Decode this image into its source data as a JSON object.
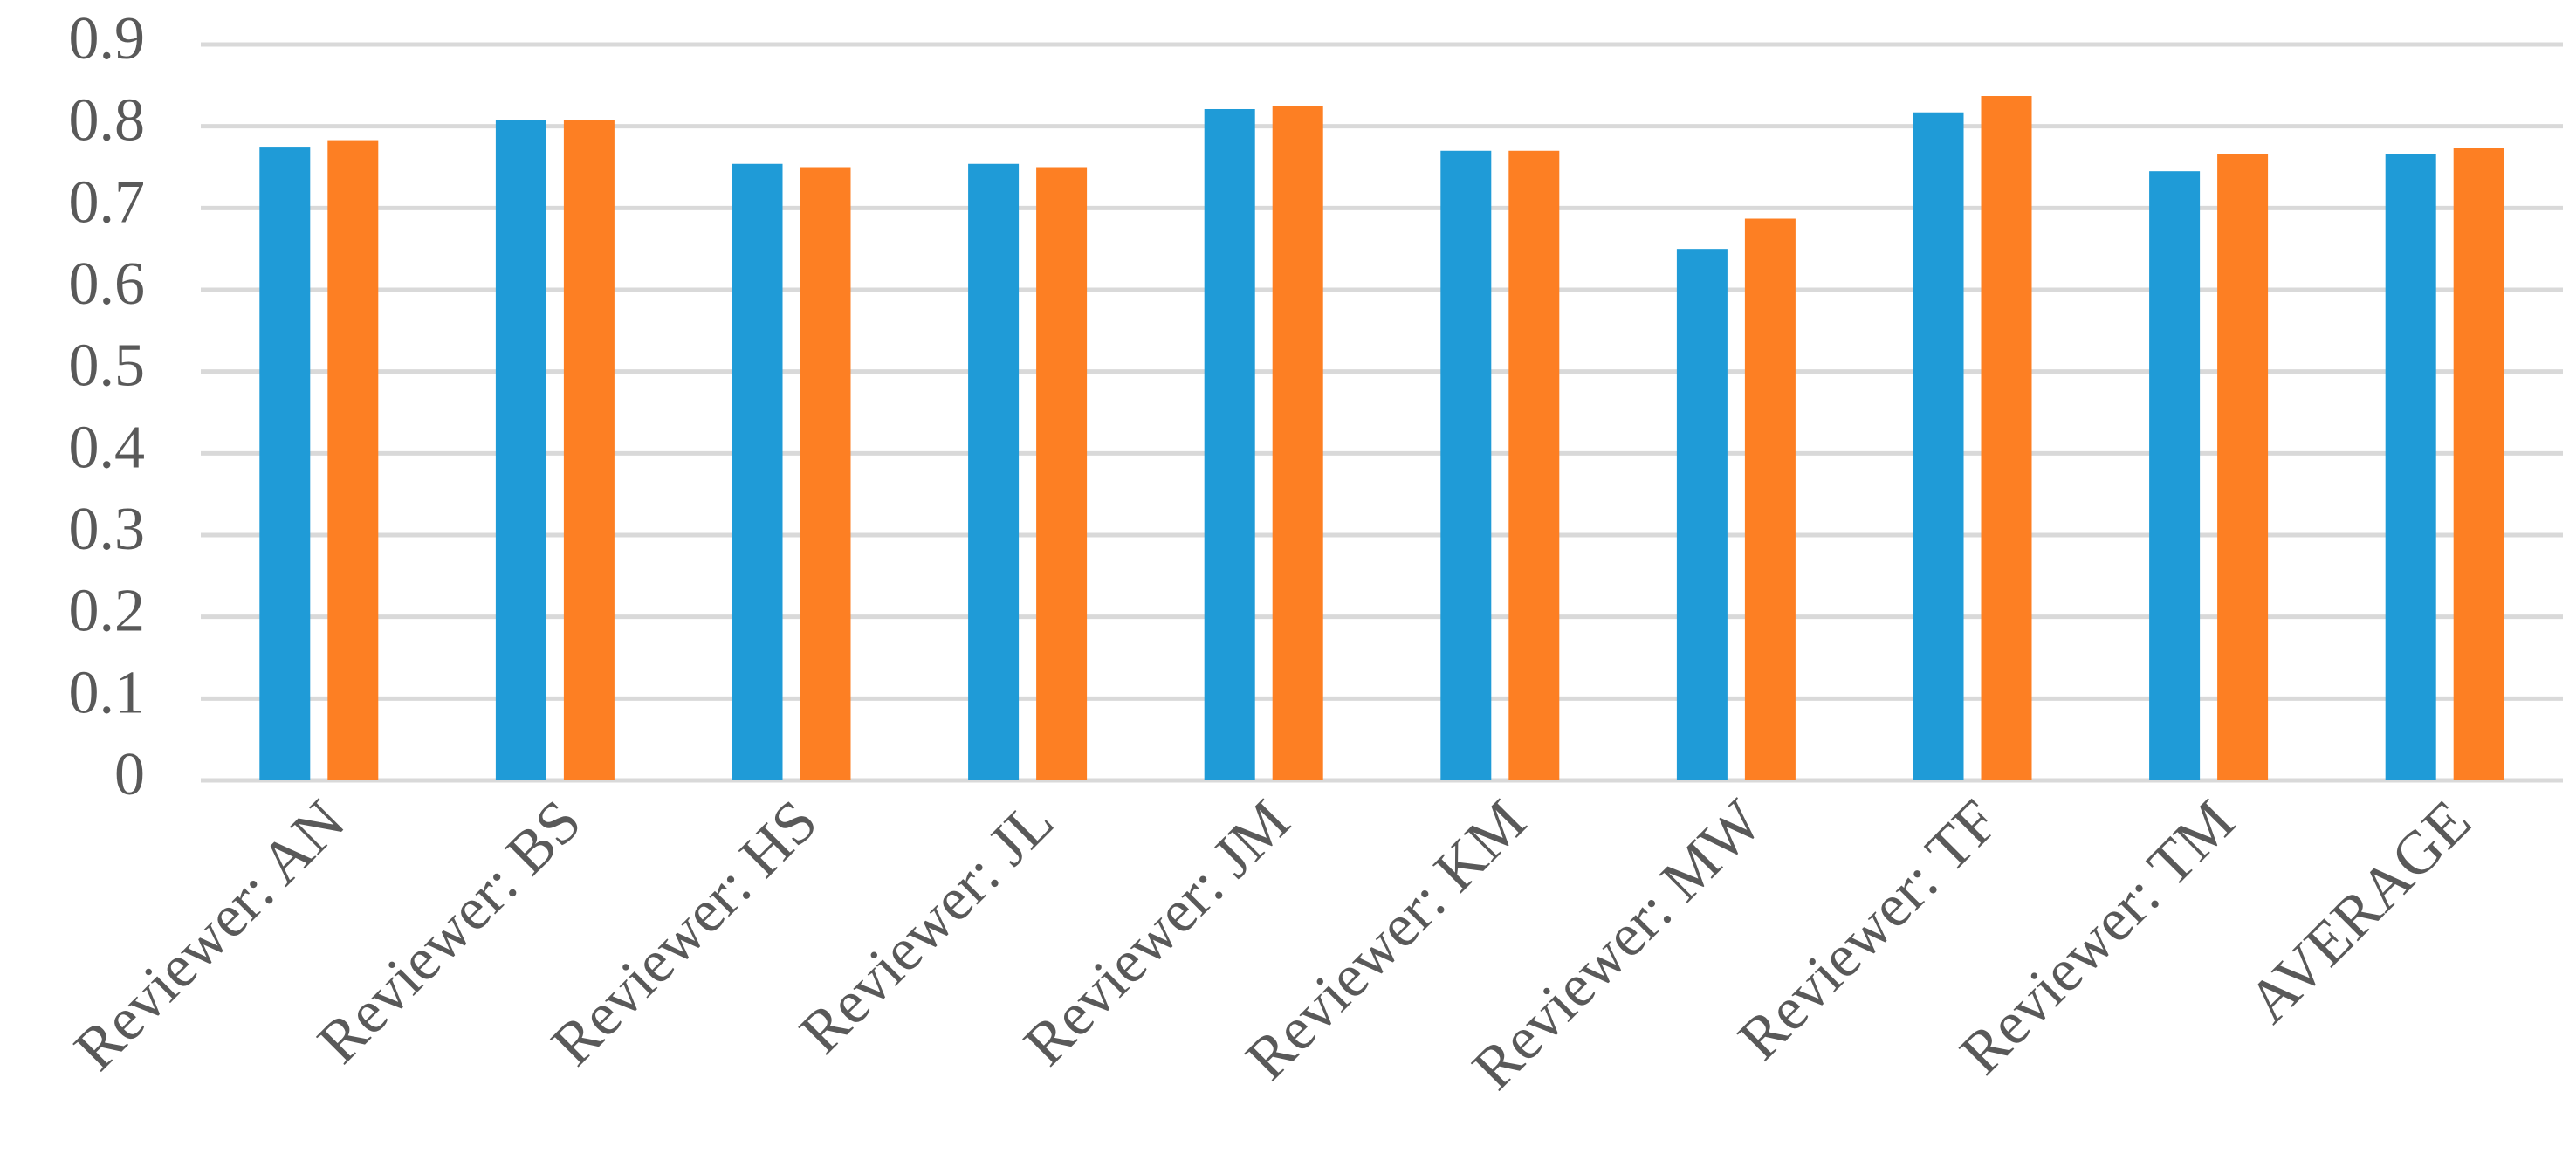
{
  "chart_data": {
    "type": "bar",
    "categories": [
      "Reviewer: AN",
      "Reviewer: BS",
      "Reviewer: HS",
      "Reviewer: JL",
      "Reviewer: JM",
      "Reviewer: KM",
      "Reviewer: MW",
      "Reviewer: TF",
      "Reviewer: TM",
      "AVERAGE"
    ],
    "series": [
      {
        "color": "#1f9bd7",
        "values": [
          0.775,
          0.808,
          0.754,
          0.754,
          0.821,
          0.77,
          0.65,
          0.817,
          0.745,
          0.766
        ]
      },
      {
        "color": "#fd7f23",
        "values": [
          0.783,
          0.808,
          0.75,
          0.75,
          0.825,
          0.77,
          0.687,
          0.837,
          0.766,
          0.774
        ]
      }
    ],
    "ylim": [
      0,
      0.9
    ],
    "yticks": [
      0,
      0.1,
      0.2,
      0.3,
      0.4,
      0.5,
      0.6,
      0.7,
      0.8,
      0.9
    ],
    "grid": true
  }
}
